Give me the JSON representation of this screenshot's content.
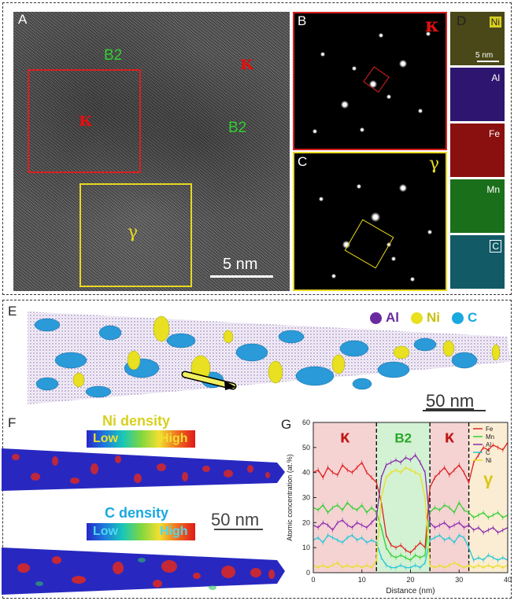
{
  "panels": {
    "A": {
      "letter": "A",
      "labels": {
        "b2_top": "B2",
        "kappa_top": "κ",
        "kappa_box": "κ",
        "b2_right": "B2",
        "gamma_box": "γ"
      },
      "scalebar": "5 nm"
    },
    "B": {
      "letter": "B",
      "phase": "κ"
    },
    "C": {
      "letter": "C",
      "phase": "γ"
    },
    "D": {
      "letter": "D",
      "maps": [
        {
          "el": "Ni",
          "color": "#d8d020"
        },
        {
          "el": "Al",
          "color": "#5a22b0"
        },
        {
          "el": "Fe",
          "color": "#c01818"
        },
        {
          "el": "Mn",
          "color": "#28b028"
        },
        {
          "el": "C",
          "color": "#1ca0b0"
        }
      ],
      "scalebar": "5 nm"
    },
    "E": {
      "letter": "E",
      "legend": [
        {
          "el": "Al",
          "color": "#6a2aa0"
        },
        {
          "el": "Ni",
          "color": "#e8e020"
        },
        {
          "el": "C",
          "color": "#1aa8e0"
        }
      ],
      "scalebar": "50 nm"
    },
    "F": {
      "letter": "F",
      "ni_title": "Ni density",
      "c_title": "C density",
      "low": "Low",
      "high": "High",
      "scalebar": "50 nm"
    },
    "G": {
      "letter": "G"
    }
  },
  "chart_data": {
    "type": "line",
    "xlabel": "Distance (nm)",
    "ylabel": "Atomic concentration (at.%)",
    "xlim": [
      0,
      40
    ],
    "ylim": [
      0,
      60
    ],
    "xticks": [
      0,
      10,
      20,
      30,
      40
    ],
    "yticks": [
      0,
      10,
      20,
      30,
      40,
      50,
      60
    ],
    "regions": [
      {
        "label": "κ",
        "x": [
          0,
          13
        ],
        "color": "#f3c8c8"
      },
      {
        "label": "B2",
        "x": [
          13,
          24
        ],
        "color": "#c8eec8"
      },
      {
        "label": "κ",
        "x": [
          24,
          32
        ],
        "color": "#f3c8c8"
      },
      {
        "label": "γ",
        "x": [
          32,
          40
        ],
        "color": "#fae8c8"
      }
    ],
    "boundaries": [
      13,
      24,
      32
    ],
    "x": [
      0,
      1,
      2,
      3,
      4,
      5,
      6,
      7,
      8,
      9,
      10,
      11,
      12,
      13,
      14,
      15,
      16,
      17,
      18,
      19,
      20,
      21,
      22,
      23,
      24,
      25,
      26,
      27,
      28,
      29,
      30,
      31,
      32,
      33,
      34,
      35,
      36,
      37,
      38,
      39,
      40
    ],
    "series": [
      {
        "name": "Fe",
        "color": "#e02020",
        "values": [
          40,
          41,
          38,
          42,
          40,
          39,
          43,
          41,
          40,
          42,
          44,
          40,
          38,
          36,
          28,
          15,
          11,
          10,
          11,
          9,
          8,
          10,
          12,
          10,
          34,
          38,
          40,
          42,
          39,
          41,
          43,
          40,
          36,
          44,
          47,
          50,
          49,
          51,
          50,
          49,
          52
        ]
      },
      {
        "name": "Mn",
        "color": "#30d030",
        "values": [
          26,
          25,
          27,
          24,
          26,
          27,
          25,
          28,
          26,
          25,
          27,
          24,
          26,
          24,
          18,
          10,
          7,
          6,
          7,
          6,
          5,
          7,
          6,
          7,
          24,
          26,
          25,
          27,
          26,
          24,
          28,
          25,
          24,
          22,
          23,
          24,
          22,
          23,
          24,
          22,
          23
        ]
      },
      {
        "name": "Al",
        "color": "#8a2ab0",
        "values": [
          19,
          18,
          20,
          19,
          17,
          20,
          21,
          19,
          18,
          20,
          19,
          18,
          20,
          22,
          38,
          43,
          44,
          45,
          44,
          46,
          45,
          47,
          44,
          40,
          20,
          18,
          19,
          20,
          18,
          19,
          20,
          18,
          19,
          17,
          18,
          16,
          17,
          18,
          16,
          17,
          18
        ]
      },
      {
        "name": "C",
        "color": "#20c8d8",
        "values": [
          13,
          14,
          12,
          15,
          14,
          13,
          12,
          14,
          15,
          13,
          14,
          12,
          13,
          12,
          6,
          3,
          2,
          2,
          3,
          2,
          2,
          3,
          2,
          4,
          13,
          14,
          15,
          13,
          14,
          12,
          15,
          14,
          10,
          5,
          6,
          5,
          7,
          6,
          5,
          6,
          5
        ]
      },
      {
        "name": "Ni",
        "color": "#e8e020",
        "values": [
          3,
          2,
          3,
          2,
          3,
          4,
          2,
          3,
          2,
          3,
          2,
          3,
          2,
          5,
          30,
          38,
          40,
          41,
          40,
          42,
          41,
          40,
          39,
          30,
          3,
          2,
          3,
          2,
          3,
          4,
          3,
          2,
          3,
          2,
          3,
          2,
          3,
          2,
          3,
          2,
          3
        ]
      }
    ]
  }
}
